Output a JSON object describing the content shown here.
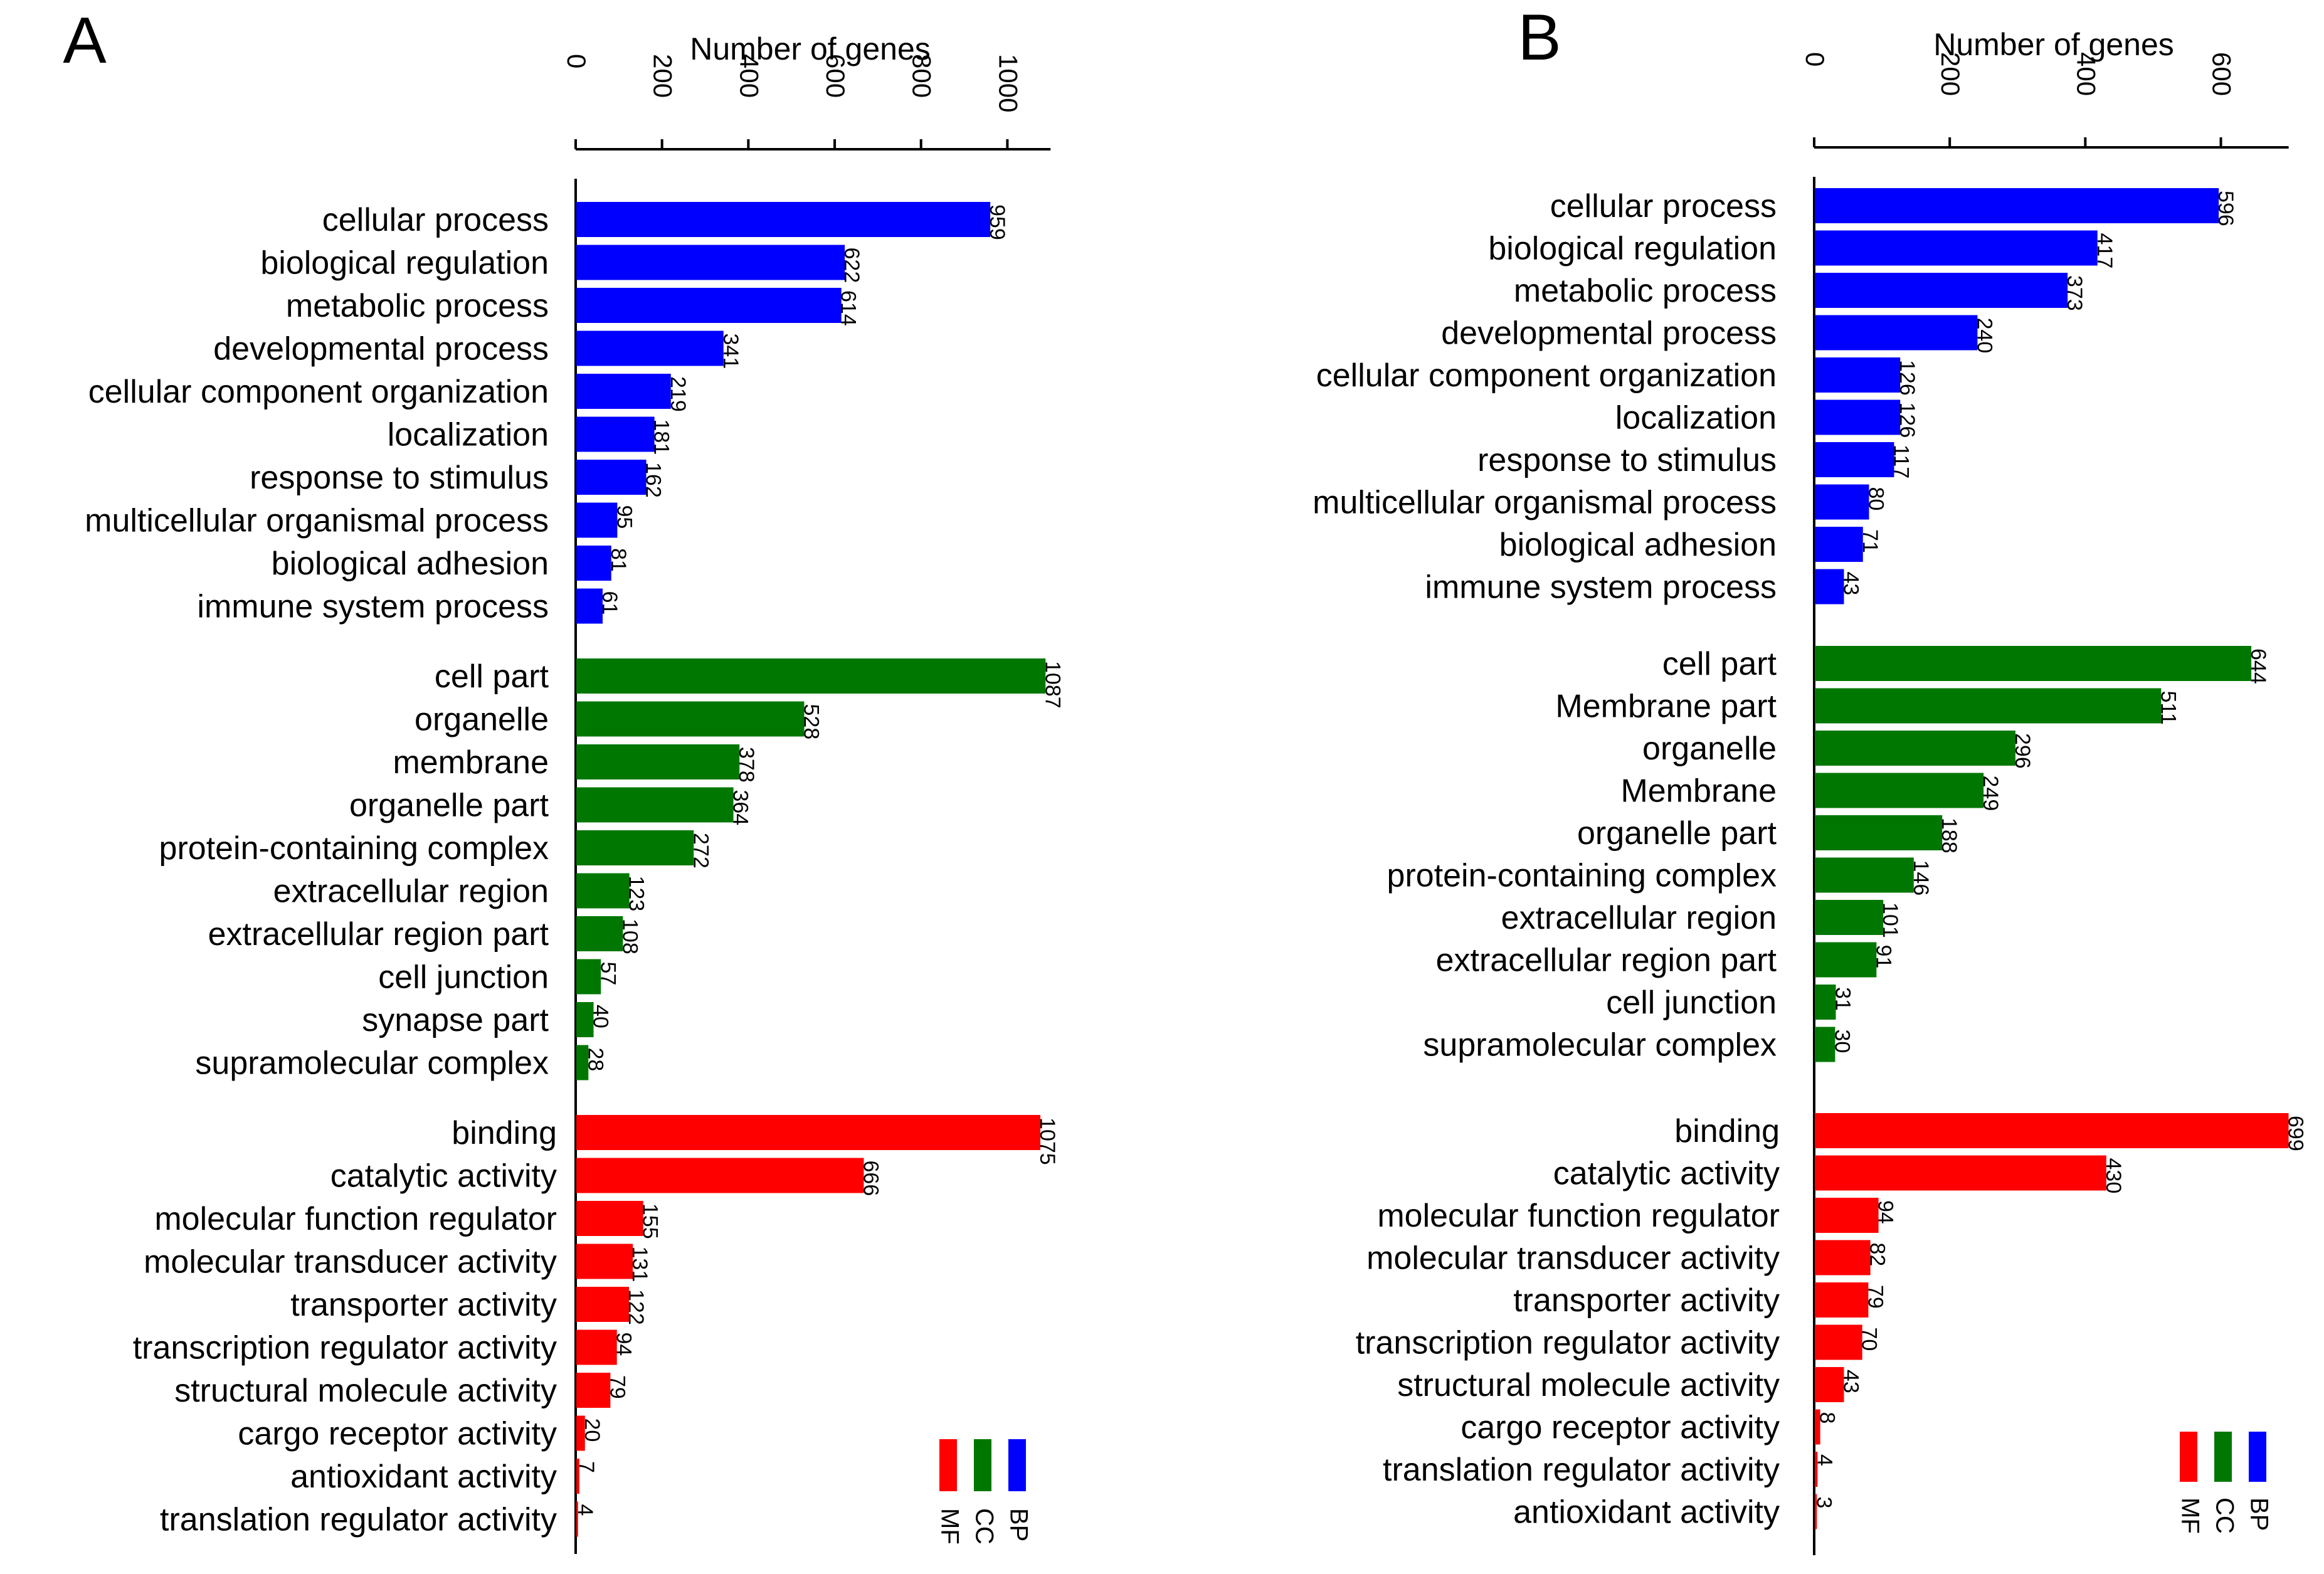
{
  "chart_data": [
    {
      "type": "bar",
      "orientation": "horizontal",
      "panel_label": "A",
      "xlabel": "Number of genes",
      "xlim": [
        0,
        1100
      ],
      "ticks": [
        "0",
        "200",
        "400",
        "600",
        "800",
        "1000"
      ],
      "groups": [
        {
          "name": "BP",
          "color": "#0000ff",
          "categories": [
            "cellular process",
            "biological regulation",
            "metabolic process",
            "developmental process",
            "cellular component organization",
            "localization",
            "response to stimulus",
            "multicellular organismal process",
            "biological adhesion",
            "immune system process"
          ],
          "values": [
            959,
            622,
            614,
            341,
            219,
            181,
            162,
            95,
            81,
            61
          ]
        },
        {
          "name": "CC",
          "color": "#007700",
          "categories": [
            "cell part",
            "organelle",
            "membrane",
            "organelle part",
            "protein-containing complex",
            "extracellular region",
            "extracellular region part",
            "cell junction",
            "synapse part",
            "supramolecular complex"
          ],
          "values": [
            1087,
            528,
            378,
            364,
            272,
            123,
            108,
            57,
            40,
            28
          ]
        },
        {
          "name": "MF",
          "color": "#ff0000",
          "categories": [
            "binding",
            "catalytic activity",
            "molecular function regulator",
            "molecular transducer activity",
            "transporter activity",
            "transcription regulator activity",
            "structural molecule activity",
            "cargo receptor activity",
            "antioxidant activity",
            "translation regulator activity"
          ],
          "values": [
            1075,
            666,
            155,
            131,
            122,
            94,
            79,
            20,
            7,
            4
          ]
        }
      ],
      "legend": [
        "MF",
        "CC",
        "BP"
      ]
    },
    {
      "type": "bar",
      "orientation": "horizontal",
      "panel_label": "B",
      "xlabel": "Number of genes",
      "xlim": [
        0,
        700
      ],
      "ticks": [
        "0",
        "200",
        "400",
        "600"
      ],
      "groups": [
        {
          "name": "BP",
          "color": "#0000ff",
          "categories": [
            "cellular process",
            "biological regulation",
            "metabolic process",
            "developmental process",
            "cellular component organization",
            "localization",
            "response to stimulus",
            "multicellular organismal process",
            "biological adhesion",
            "immune system process"
          ],
          "values": [
            596,
            417,
            373,
            240,
            126,
            126,
            117,
            80,
            71,
            43
          ]
        },
        {
          "name": "CC",
          "color": "#007700",
          "categories": [
            "cell part",
            "Membrane part",
            "organelle",
            "Membrane",
            "organelle part",
            "protein-containing complex",
            "extracellular region",
            "extracellular region part",
            "cell junction",
            "supramolecular complex"
          ],
          "values": [
            644,
            511,
            296,
            249,
            188,
            146,
            101,
            91,
            31,
            30
          ]
        },
        {
          "name": "MF",
          "color": "#ff0000",
          "categories": [
            "binding",
            "catalytic activity",
            "molecular function regulator",
            "molecular transducer activity",
            "transporter activity",
            "transcription regulator activity",
            "structural molecule activity",
            "cargo receptor activity",
            "translation regulator activity",
            "antioxidant activity"
          ],
          "values": [
            699,
            430,
            94,
            82,
            79,
            70,
            43,
            8,
            4,
            3
          ]
        }
      ],
      "legend": [
        "MF",
        "CC",
        "BP"
      ]
    }
  ]
}
